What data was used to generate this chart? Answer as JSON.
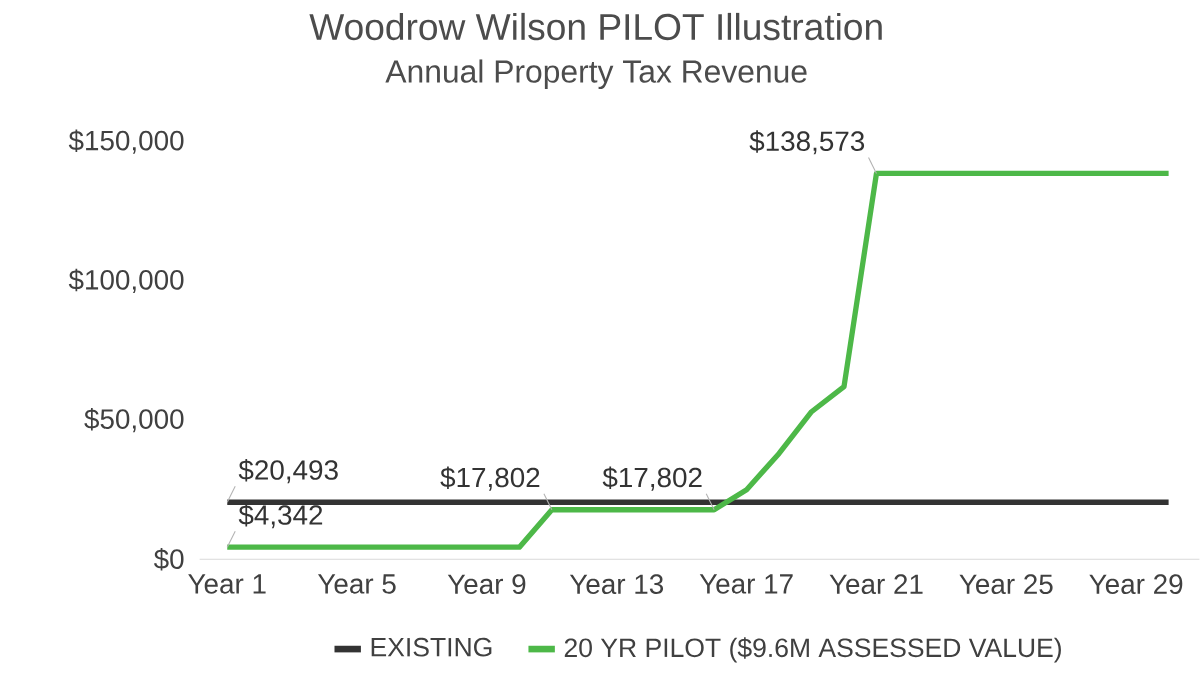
{
  "chart_data": {
    "type": "line",
    "title": "Woodrow Wilson PILOT Illustration",
    "subtitle": "Annual Property Tax Revenue",
    "categories": [
      "Year 1",
      null,
      null,
      null,
      "Year 5",
      null,
      null,
      null,
      "Year 9",
      null,
      null,
      null,
      "Year 13",
      null,
      null,
      null,
      "Year 17",
      null,
      null,
      null,
      "Year 21",
      null,
      null,
      null,
      "Year 25",
      null,
      null,
      null,
      "Year 29",
      null
    ],
    "series": [
      {
        "name": "EXISTING",
        "color": "#333333",
        "values": [
          20493,
          20493,
          20493,
          20493,
          20493,
          20493,
          20493,
          20493,
          20493,
          20493,
          20493,
          20493,
          20493,
          20493,
          20493,
          20493,
          20493,
          20493,
          20493,
          20493,
          20493,
          20493,
          20493,
          20493,
          20493,
          20493,
          20493,
          20493,
          20493,
          20493
        ],
        "value_labels": [
          "$20,493",
          null,
          null,
          null,
          null,
          null,
          null,
          null,
          null,
          null,
          null,
          null,
          null,
          null,
          null,
          null,
          null,
          null,
          null,
          null,
          null,
          null,
          null,
          null,
          null,
          null,
          null,
          null,
          null,
          null
        ]
      },
      {
        "name": "20 YR PILOT ($9.6M ASSESSED VALUE)",
        "color": "#4db848",
        "values": [
          4342,
          4342,
          4342,
          4342,
          4342,
          4342,
          4342,
          4342,
          4342,
          4342,
          17802,
          17802,
          17802,
          17802,
          17802,
          17802,
          25000,
          38000,
          53000,
          62000,
          138573,
          138573,
          138573,
          138573,
          138573,
          138573,
          138573,
          138573,
          138573,
          138573
        ],
        "value_labels": [
          "$4,342",
          null,
          null,
          null,
          null,
          null,
          null,
          null,
          null,
          null,
          "$17,802",
          null,
          null,
          null,
          null,
          "$17,802",
          null,
          null,
          null,
          null,
          "$138,573",
          null,
          null,
          null,
          null,
          null,
          null,
          null,
          null,
          null
        ]
      }
    ],
    "ylim": [
      0,
      150000
    ],
    "yticks": [
      {
        "value": 0,
        "label": "$0"
      },
      {
        "value": 50000,
        "label": "$50,000"
      },
      {
        "value": 100000,
        "label": "$100,000"
      },
      {
        "value": 150000,
        "label": "$150,000"
      }
    ],
    "grid": false,
    "legend": "bottom",
    "marker": "none",
    "line_style": "solid"
  }
}
